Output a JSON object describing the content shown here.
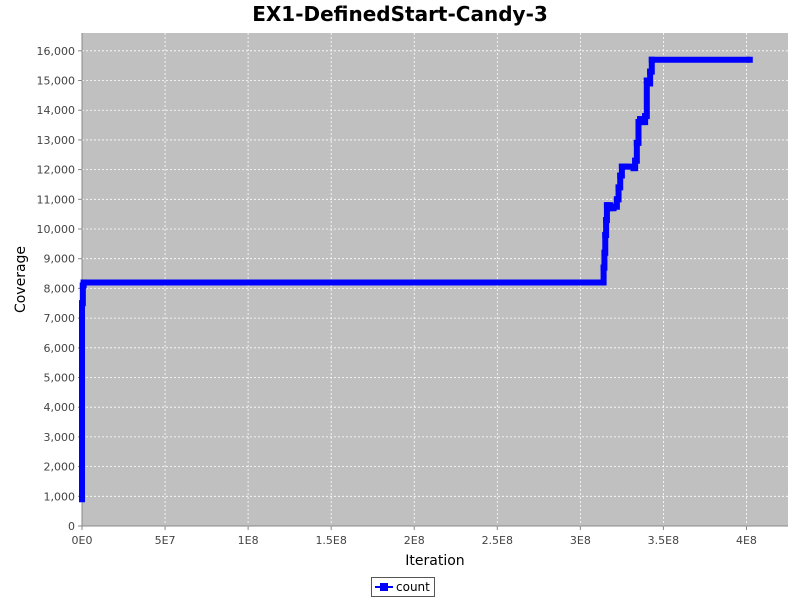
{
  "chart_data": {
    "type": "line",
    "title": "EX1-DefinedStart-Candy-3",
    "xlabel": "Iteration",
    "ylabel": "Coverage",
    "xlim": [
      0,
      425000000
    ],
    "ylim": [
      0,
      16600
    ],
    "grid": true,
    "legend_position": "bottom-center",
    "background_color": "#c0c0c0",
    "grid_color": "#ffffff",
    "x_tick_values": [
      0,
      50000000,
      100000000,
      150000000,
      200000000,
      250000000,
      300000000,
      350000000,
      400000000
    ],
    "x_tick_labels": [
      "0E0",
      "5E7",
      "1E8",
      "1.5E8",
      "2E8",
      "2.5E8",
      "3E8",
      "3.5E8",
      "4E8"
    ],
    "y_tick_values": [
      0,
      1000,
      2000,
      3000,
      4000,
      5000,
      6000,
      7000,
      8000,
      9000,
      10000,
      11000,
      12000,
      13000,
      14000,
      15000,
      16000
    ],
    "y_tick_labels": [
      "0",
      "1,000",
      "2,000",
      "3,000",
      "4,000",
      "5,000",
      "6,000",
      "7,000",
      "8,000",
      "9,000",
      "10,000",
      "11,000",
      "12,000",
      "13,000",
      "14,000",
      "15,000",
      "16,000"
    ],
    "series": [
      {
        "name": "count",
        "color": "#0000ff",
        "x": [
          0,
          0,
          0,
          0,
          0,
          0,
          0,
          0,
          0,
          0,
          0,
          0,
          500000,
          1000000,
          313000000,
          314000000,
          314500000,
          315000000,
          315500000,
          316000000,
          317000000,
          318000000,
          320000000,
          322000000,
          323000000,
          324000000,
          325000000,
          328000000,
          332000000,
          333000000,
          334000000,
          335000000,
          336000000,
          338000000,
          339000000,
          340000000,
          341000000,
          342000000,
          343000000,
          402000000
        ],
        "y": [
          900,
          1800,
          2500,
          3200,
          3700,
          4200,
          4700,
          5100,
          5500,
          6000,
          6600,
          7500,
          8100,
          8200,
          8200,
          8700,
          9200,
          9800,
          10300,
          10800,
          10800,
          10700,
          10750,
          11000,
          11400,
          11800,
          12100,
          12100,
          12050,
          12300,
          12900,
          13600,
          13700,
          13600,
          13800,
          15000,
          14900,
          15300,
          15700,
          15700
        ]
      }
    ]
  }
}
